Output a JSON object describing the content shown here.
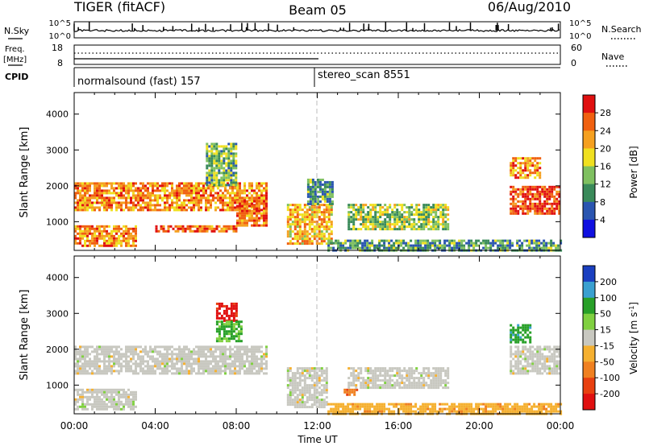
{
  "header": {
    "radar": "TIGER (fitACF)",
    "beam": "Beam 05",
    "date": "06/Aug/2010"
  },
  "top_panels": {
    "nsky_label": "N.Sky",
    "nsearch_label": "N.Search",
    "noise_ticks": [
      "10^5",
      "10^0"
    ],
    "freq_label_1": "Freq.",
    "freq_label_2": "[MHz]",
    "freq_ticks": [
      "18",
      "8"
    ],
    "nave_label": "Nave",
    "nave_ticks": [
      "60",
      "0"
    ],
    "cpid_label": "CPID",
    "cpid_segments": [
      {
        "name": "normalsound (fast) 157",
        "start_hour": 0,
        "end_hour": 12
      },
      {
        "name": "stereo_scan 8551",
        "start_hour": 12,
        "end_hour": 24
      }
    ]
  },
  "x_axis": {
    "label": "Time UT",
    "ticks": [
      "00:00",
      "04:00",
      "08:00",
      "12:00",
      "16:00",
      "20:00",
      "00:00"
    ]
  },
  "y_axis": {
    "label": "Slant Range [km]",
    "ticks": [
      "1000",
      "2000",
      "3000",
      "4000"
    ]
  },
  "power_colorbar": {
    "label": "Power [dB]",
    "ticks": [
      "4",
      "8",
      "12",
      "16",
      "20",
      "24",
      "28"
    ],
    "colors": [
      "#1010e0",
      "#2a55b0",
      "#3a8a5a",
      "#7fc060",
      "#f0e020",
      "#f5a020",
      "#f06010",
      "#e01010"
    ]
  },
  "velocity_colorbar": {
    "label": "Velocity [m s",
    "label_sup": "-1",
    "label_end": "]",
    "ticks": [
      "200",
      "100",
      "50",
      "15",
      "-15",
      "-50",
      "-100",
      "-200"
    ],
    "colors": [
      "#1a3fc0",
      "#3aa0d0",
      "#28a028",
      "#80d040",
      "#c8c8c0",
      "#f5b030",
      "#f08020",
      "#e84010",
      "#e01010"
    ]
  },
  "chart_data": [
    {
      "type": "heatmap",
      "title": "Power",
      "xlabel": "Time UT",
      "ylabel": "Slant Range [km]",
      "xlim": [
        0,
        24
      ],
      "ylim": [
        200,
        4600
      ],
      "clim": [
        0,
        30
      ],
      "units": "dB",
      "regions": [
        {
          "t": [
            0,
            9.5
          ],
          "r": [
            1300,
            2100
          ],
          "value": 22
        },
        {
          "t": [
            0,
            3
          ],
          "r": [
            300,
            900
          ],
          "value": 22
        },
        {
          "t": [
            4,
            8
          ],
          "r": [
            750,
            900
          ],
          "value": 24
        },
        {
          "t": [
            6.5,
            8
          ],
          "r": [
            2000,
            3200
          ],
          "value": 12
        },
        {
          "t": [
            8,
            9.5
          ],
          "r": [
            900,
            1600
          ],
          "value": 24
        },
        {
          "t": [
            10.5,
            12.7
          ],
          "r": [
            400,
            1500
          ],
          "value": 20
        },
        {
          "t": [
            11.5,
            12.8
          ],
          "r": [
            1500,
            2200
          ],
          "value": 10
        },
        {
          "t": [
            13.5,
            18.5
          ],
          "r": [
            800,
            1500
          ],
          "value": 14
        },
        {
          "t": [
            12.5,
            24
          ],
          "r": [
            200,
            500
          ],
          "value": 10
        },
        {
          "t": [
            21.5,
            24
          ],
          "r": [
            1200,
            2000
          ],
          "value": 26
        },
        {
          "t": [
            21.5,
            23
          ],
          "r": [
            2200,
            2800
          ],
          "value": 22
        }
      ]
    },
    {
      "type": "heatmap",
      "title": "Velocity",
      "xlabel": "Time UT",
      "ylabel": "Slant Range [km]",
      "xlim": [
        0,
        24
      ],
      "ylim": [
        200,
        4600
      ],
      "clim": [
        -250,
        250
      ],
      "units": "m s^-1",
      "regions": [
        {
          "t": [
            0,
            9.5
          ],
          "r": [
            1300,
            2100
          ],
          "value": 0
        },
        {
          "t": [
            0,
            3
          ],
          "r": [
            300,
            900
          ],
          "value": 0
        },
        {
          "t": [
            7,
            8
          ],
          "r": [
            2800,
            3300
          ],
          "value": -220
        },
        {
          "t": [
            7,
            8.3
          ],
          "r": [
            2200,
            2800
          ],
          "value": 100
        },
        {
          "t": [
            10.5,
            12.5
          ],
          "r": [
            400,
            1500
          ],
          "value": 0
        },
        {
          "t": [
            13.3,
            13.9
          ],
          "r": [
            700,
            900
          ],
          "value": -120
        },
        {
          "t": [
            13.5,
            18.5
          ],
          "r": [
            900,
            1500
          ],
          "value": 0
        },
        {
          "t": [
            12.5,
            24
          ],
          "r": [
            200,
            500
          ],
          "value": -60
        },
        {
          "t": [
            21.5,
            24
          ],
          "r": [
            1300,
            2100
          ],
          "value": 0
        },
        {
          "t": [
            21.5,
            22.5
          ],
          "r": [
            2200,
            2700
          ],
          "value": 120
        }
      ]
    }
  ]
}
